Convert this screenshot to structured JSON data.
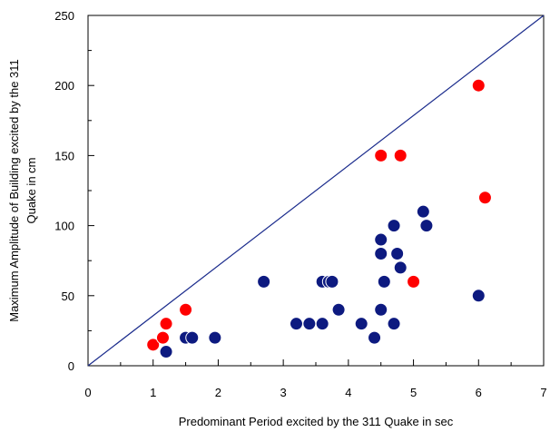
{
  "chart_data": {
    "type": "scatter",
    "title": "",
    "xlabel": "Predominant Period excited by the 311 Quake in sec",
    "ylabel_lines": [
      "Maximum Amplitude of Building excited by the 311",
      "Quake in cm"
    ],
    "xlim": [
      0,
      7
    ],
    "ylim": [
      0,
      250
    ],
    "x_ticks": [
      "0",
      "1",
      "2",
      "3",
      "4",
      "5",
      "6",
      "7"
    ],
    "y_ticks": [
      "0",
      "50",
      "100",
      "150",
      "200",
      "250"
    ],
    "grid": false,
    "legend": "none",
    "reference_line": {
      "from": [
        0,
        0
      ],
      "to": [
        7,
        250
      ],
      "color": "#1a2b8c"
    },
    "series": [
      {
        "color": "#0d1a80",
        "points": [
          [
            1.2,
            10
          ],
          [
            1.5,
            20
          ],
          [
            1.6,
            20
          ],
          [
            1.95,
            20
          ],
          [
            2.7,
            60
          ],
          [
            3.2,
            30
          ],
          [
            3.4,
            30
          ],
          [
            3.6,
            30
          ],
          [
            3.6,
            60
          ],
          [
            3.7,
            60
          ],
          [
            3.75,
            60
          ],
          [
            3.85,
            40
          ],
          [
            4.2,
            30
          ],
          [
            4.4,
            20
          ],
          [
            4.5,
            40
          ],
          [
            4.5,
            80
          ],
          [
            4.5,
            90
          ],
          [
            4.55,
            60
          ],
          [
            4.7,
            30
          ],
          [
            4.7,
            100
          ],
          [
            4.75,
            80
          ],
          [
            4.8,
            70
          ],
          [
            5.15,
            110
          ],
          [
            5.2,
            100
          ],
          [
            6.0,
            50
          ]
        ]
      },
      {
        "color": "#ff0000",
        "points": [
          [
            1.0,
            15
          ],
          [
            1.15,
            20
          ],
          [
            1.2,
            30
          ],
          [
            1.5,
            40
          ],
          [
            4.5,
            150
          ],
          [
            4.8,
            150
          ],
          [
            5.0,
            60
          ],
          [
            6.0,
            200
          ],
          [
            6.1,
            120
          ]
        ]
      }
    ]
  }
}
